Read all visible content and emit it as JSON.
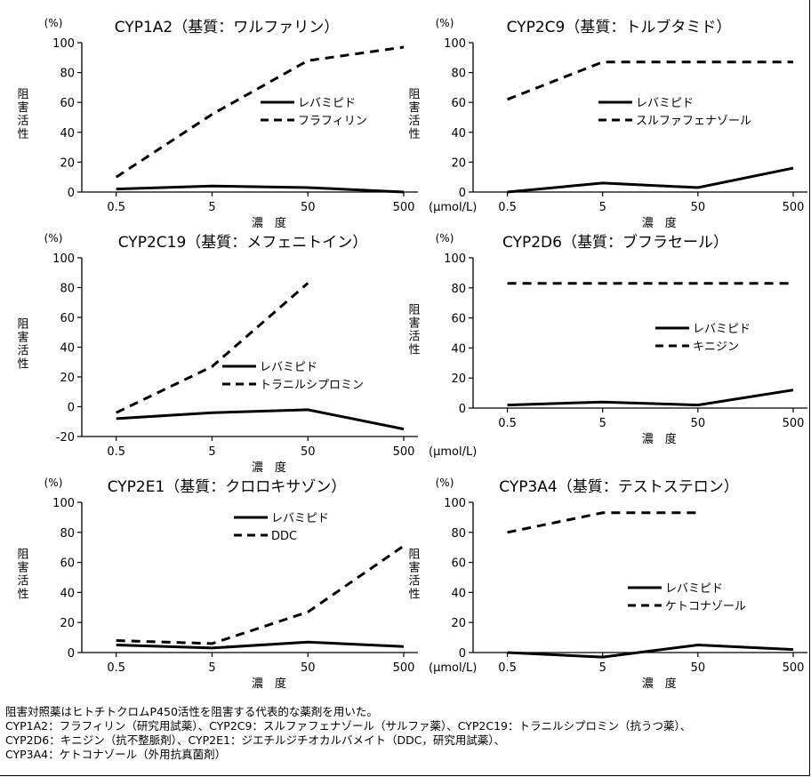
{
  "chart_data": [
    {
      "type": "line",
      "title": "CYP1A2（基質：ワルファリン）",
      "unit": "(%)",
      "ylabel": "阻害活性",
      "xlabel": "濃　度",
      "x_unit": "(μmol/L)",
      "categories": [
        "0.5",
        "5",
        "50",
        "500"
      ],
      "ylim": [
        0,
        100
      ],
      "yticks": [
        0,
        20,
        40,
        60,
        80,
        100
      ],
      "series": [
        {
          "name": "レバミピド",
          "style": "solid",
          "values": [
            2,
            4,
            3,
            0
          ]
        },
        {
          "name": "フラフィリン",
          "style": "dashed",
          "values": [
            10,
            52,
            88,
            97
          ]
        }
      ]
    },
    {
      "type": "line",
      "title": "CYP2C9（基質：トルブタミド）",
      "unit": "(%)",
      "ylabel": "阻害活性",
      "xlabel": "濃　度",
      "x_unit": "(μmol/L)",
      "categories": [
        "0.5",
        "5",
        "50",
        "500"
      ],
      "ylim": [
        0,
        100
      ],
      "yticks": [
        0,
        20,
        40,
        60,
        80,
        100
      ],
      "series": [
        {
          "name": "レバミピド",
          "style": "solid",
          "values": [
            0,
            6,
            3,
            16
          ]
        },
        {
          "name": "スルファフェナゾール",
          "style": "dashed",
          "values": [
            62,
            87,
            87,
            87
          ]
        }
      ]
    },
    {
      "type": "line",
      "title": "CYP2C19（基質：メフェニトイン）",
      "unit": "(%)",
      "ylabel": "阻害活性",
      "xlabel": "濃　度",
      "x_unit": "(μmol/L)",
      "categories": [
        "0.5",
        "5",
        "50",
        "500"
      ],
      "ylim": [
        -20,
        100
      ],
      "yticks": [
        -20,
        0,
        20,
        40,
        60,
        80,
        100
      ],
      "series": [
        {
          "name": "レバミピド",
          "style": "solid",
          "values": [
            -8,
            -4,
            -2,
            -15
          ]
        },
        {
          "name": "トラニルシプロミン",
          "style": "dashed",
          "values": [
            -4,
            27,
            83,
            null
          ]
        }
      ]
    },
    {
      "type": "line",
      "title": "CYP2D6（基質：ブフラセール）",
      "unit": "(%)",
      "ylabel": "阻害活性",
      "xlabel": "濃　度",
      "x_unit": "(μmol/L)",
      "categories": [
        "0.5",
        "5",
        "50",
        "500"
      ],
      "ylim": [
        0,
        100
      ],
      "yticks": [
        0,
        20,
        40,
        60,
        80,
        100
      ],
      "series": [
        {
          "name": "レバミピド",
          "style": "solid",
          "values": [
            2,
            4,
            2,
            12
          ]
        },
        {
          "name": "キニジン",
          "style": "dashed",
          "values": [
            83,
            83,
            83,
            83
          ]
        }
      ]
    },
    {
      "type": "line",
      "title": "CYP2E1（基質：クロロキサゾン）",
      "unit": "(%)",
      "ylabel": "阻害活性",
      "xlabel": "濃　度",
      "x_unit": "(μmol/L)",
      "categories": [
        "0.5",
        "5",
        "50",
        "500"
      ],
      "ylim": [
        0,
        100
      ],
      "yticks": [
        0,
        20,
        40,
        60,
        80,
        100
      ],
      "series": [
        {
          "name": "レバミピド",
          "style": "solid",
          "values": [
            5,
            3,
            7,
            4
          ]
        },
        {
          "name": "DDC",
          "style": "dashed",
          "values": [
            8,
            6,
            27,
            71
          ]
        }
      ]
    },
    {
      "type": "line",
      "title": "CYP3A4（基質：テストステロン）",
      "unit": "(%)",
      "ylabel": "阻害活性",
      "xlabel": "濃　度",
      "x_unit": "(μmol/L)",
      "categories": [
        "0.5",
        "5",
        "50",
        "500"
      ],
      "ylim": [
        0,
        100
      ],
      "yticks": [
        0,
        20,
        40,
        60,
        80,
        100
      ],
      "series": [
        {
          "name": "レバミピド",
          "style": "solid",
          "values": [
            0,
            -3,
            5,
            2
          ]
        },
        {
          "name": "ケトコナゾール",
          "style": "dashed",
          "values": [
            80,
            93,
            93,
            null
          ]
        }
      ]
    }
  ],
  "notes": [
    "阻害対照薬はヒトチトクロムP450活性を阻害する代表的な薬剤を用いた。",
    "CYP1A2：フラフィリン（研究用試薬）、CYP2C9：スルファフェナゾール（サルファ薬）、CYP2C19：トラニルシプロミン（抗うつ薬）、",
    "CYP2D6：キニジン（抗不整脈剤）、CYP2E1：ジエチルジチオカルバメイト（DDC，研究用試薬）、",
    "CYP3A4：ケトコナゾール（外用抗真菌剤）"
  ]
}
